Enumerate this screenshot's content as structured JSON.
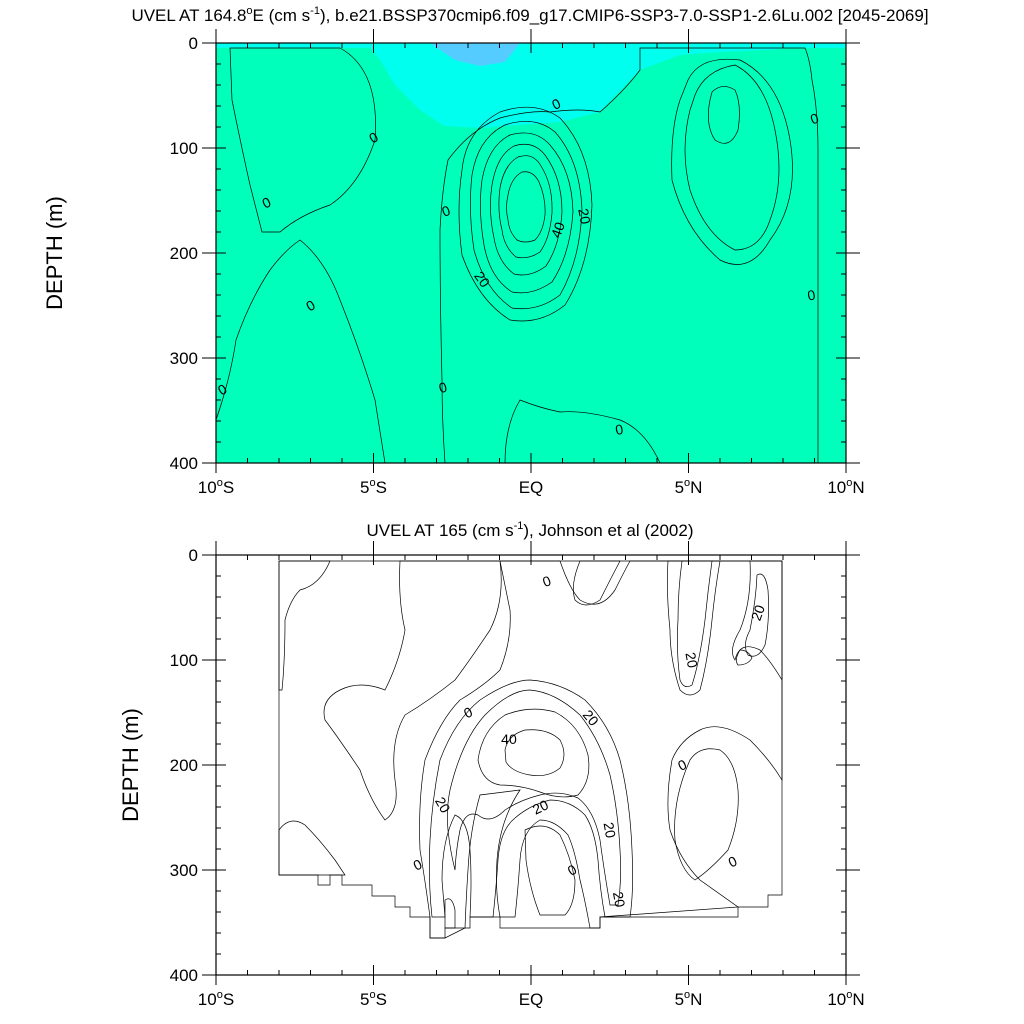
{
  "chart_data": [
    {
      "type": "contour",
      "title": "UVEL AT 164.8°E (cm s-1), b.e21.BSSP370cmip6.f09_g17.CMIP6-SSP3-7.0-SSP1-2.6Lu.002 [2045-2069]",
      "title_parts": {
        "a": "UVEL AT 164.8",
        "deg": "o",
        "b": "E (cm s",
        "sup": "-1",
        "c": "), b.e21.BSSP370cmip6.f09_g17.CMIP6-SSP3-7.0-SSP1-2.6Lu.002 [2045-2069]"
      },
      "ylabel": "DEPTH (m)",
      "xlim": [
        -10,
        10
      ],
      "ylim": [
        400,
        0
      ],
      "x_ticks": [
        {
          "v": -10,
          "num": "10",
          "sym": "o",
          "hem": "S"
        },
        {
          "v": -5,
          "num": "5",
          "sym": "o",
          "hem": "S"
        },
        {
          "v": 0,
          "num": "EQ",
          "sym": "",
          "hem": ""
        },
        {
          "v": 5,
          "num": "5",
          "sym": "o",
          "hem": "N"
        },
        {
          "v": 10,
          "num": "10",
          "sym": "o",
          "hem": "N"
        }
      ],
      "y_ticks": [
        "0",
        "100",
        "200",
        "300",
        "400"
      ],
      "contour_interval": 10,
      "features": [
        {
          "kind": "eastward jet core",
          "lat": 0.0,
          "depth": 170,
          "max": 50
        },
        {
          "kind": "eastward maximum",
          "lat": 6.0,
          "depth": 80,
          "max": 10
        }
      ],
      "contour_labels": [
        {
          "text": "0",
          "lat": 0.8,
          "depth": 58,
          "rot": -25
        },
        {
          "text": "0",
          "lat": -5.0,
          "depth": 90,
          "rot": -30
        },
        {
          "text": "0",
          "lat": -8.4,
          "depth": 152,
          "rot": -25
        },
        {
          "text": "0",
          "lat": 9.0,
          "depth": 72,
          "rot": -20
        },
        {
          "text": "0",
          "lat": -2.7,
          "depth": 160,
          "rot": -20
        },
        {
          "text": "0",
          "lat": -7.0,
          "depth": 250,
          "rot": -30
        },
        {
          "text": "0",
          "lat": 8.9,
          "depth": 240,
          "rot": -10
        },
        {
          "text": "0",
          "lat": -9.8,
          "depth": 330,
          "rot": -30
        },
        {
          "text": "0",
          "lat": -2.8,
          "depth": 328,
          "rot": -15
        },
        {
          "text": "0",
          "lat": 2.8,
          "depth": 368,
          "rot": -10
        },
        {
          "text": "20",
          "lat": 1.7,
          "depth": 165,
          "rot": 80
        },
        {
          "text": "40",
          "lat": 0.85,
          "depth": 178,
          "rot": -70
        },
        {
          "text": "20",
          "lat": -1.55,
          "depth": 225,
          "rot": 55
        }
      ]
    },
    {
      "type": "contour",
      "title": "UVEL AT 165 (cm s-1), Johnson et al (2002)",
      "title_parts": {
        "a": "UVEL AT 165 (cm s",
        "sup": "-1",
        "b": "), Johnson et al (2002)"
      },
      "ylabel": "DEPTH (m)",
      "xlim": [
        -10,
        10
      ],
      "ylim": [
        400,
        0
      ],
      "x_ticks": [
        {
          "v": -10,
          "num": "10",
          "sym": "o",
          "hem": "S"
        },
        {
          "v": -5,
          "num": "5",
          "sym": "o",
          "hem": "S"
        },
        {
          "v": 0,
          "num": "EQ",
          "sym": "",
          "hem": ""
        },
        {
          "v": 5,
          "num": "5",
          "sym": "o",
          "hem": "N"
        },
        {
          "v": 10,
          "num": "10",
          "sym": "o",
          "hem": "N"
        }
      ],
      "y_ticks": [
        "0",
        "100",
        "200",
        "300",
        "400"
      ],
      "contour_interval": 10,
      "data_lat_range": [
        -8,
        8
      ],
      "features": [
        {
          "kind": "eastward jet core",
          "lat": 0.0,
          "depth": 185,
          "max": 45
        },
        {
          "kind": "eastward maximum",
          "lat": 5.0,
          "depth": 60,
          "max": 25
        },
        {
          "kind": "eastward maximum",
          "lat": 7.2,
          "depth": 60,
          "max": 25
        }
      ],
      "contour_labels": [
        {
          "text": "0",
          "lat": 0.5,
          "depth": 25,
          "rot": -20
        },
        {
          "text": "20",
          "lat": 7.2,
          "depth": 55,
          "rot": -70
        },
        {
          "text": "20",
          "lat": 5.1,
          "depth": 100,
          "rot": 80
        },
        {
          "text": "0",
          "lat": -2.0,
          "depth": 150,
          "rot": -25
        },
        {
          "text": "20",
          "lat": 1.9,
          "depth": 155,
          "rot": 50
        },
        {
          "text": "40",
          "lat": -0.7,
          "depth": 175,
          "rot": 0
        },
        {
          "text": "0",
          "lat": 4.8,
          "depth": 200,
          "rot": -25
        },
        {
          "text": "20",
          "lat": -2.8,
          "depth": 238,
          "rot": 60
        },
        {
          "text": "20",
          "lat": 0.3,
          "depth": 240,
          "rot": -25
        },
        {
          "text": "20",
          "lat": 2.5,
          "depth": 262,
          "rot": 80
        },
        {
          "text": "0",
          "lat": -3.6,
          "depth": 295,
          "rot": -25
        },
        {
          "text": "0",
          "lat": 1.3,
          "depth": 300,
          "rot": -30
        },
        {
          "text": "0",
          "lat": 6.4,
          "depth": 292,
          "rot": -25
        },
        {
          "text": "20",
          "lat": 2.8,
          "depth": 328,
          "rot": 80
        }
      ]
    }
  ],
  "fill_colors": {
    "neg_lt_m10": "#55ccff",
    "neg_m10_0": "#00ffee",
    "neg_0_10_sea": "#00ffbb",
    "p0_10": "#33ee33",
    "p10_20": "#66ff00",
    "p20_30": "#ffff00",
    "p30_40": "#ffd23c",
    "p40_50": "#ffaa33",
    "p50_60": "#ff8833"
  }
}
